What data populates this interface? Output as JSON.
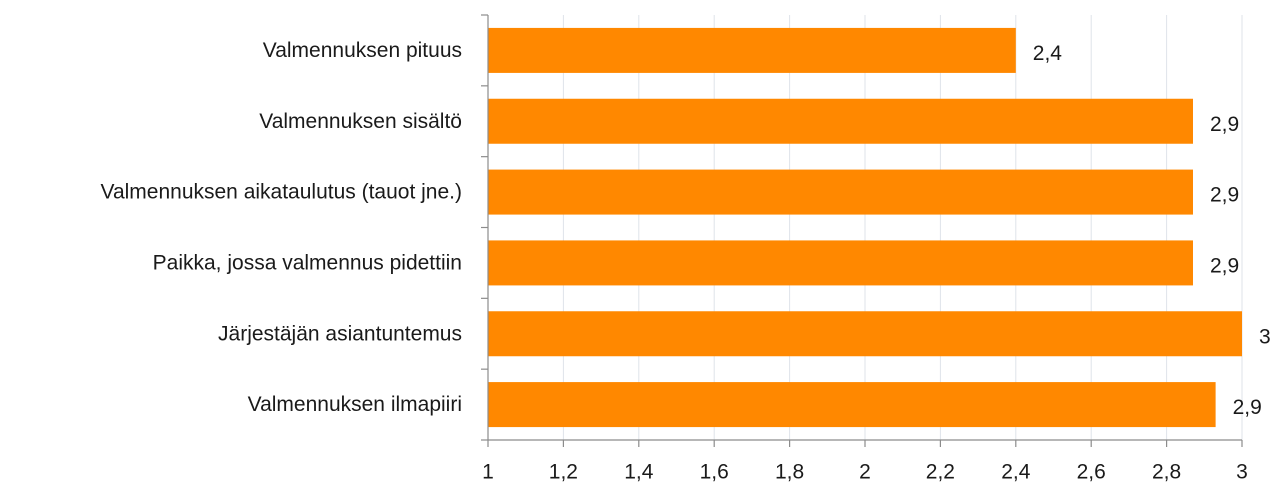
{
  "chart_data": {
    "type": "bar",
    "orientation": "horizontal",
    "categories": [
      "Valmennuksen pituus",
      "Valmennuksen sisältö",
      "Valmennuksen aikataulutus (tauot jne.)",
      "Paikka, jossa valmennus pidettiin",
      "Järjestäjän asiantuntemus",
      "Valmennuksen ilmapiiri"
    ],
    "values": [
      2.4,
      2.87,
      2.87,
      2.87,
      3.0,
      2.93
    ],
    "data_labels": [
      "2,4",
      "2,9",
      "2,9",
      "2,9",
      "3",
      "2,9"
    ],
    "xlim": [
      1,
      3
    ],
    "ticks": [
      1,
      1.2,
      1.4,
      1.6,
      1.8,
      2,
      2.2,
      2.4,
      2.6,
      2.8,
      3
    ],
    "tick_labels": [
      "1",
      "1,2",
      "1,4",
      "1,6",
      "1,8",
      "2",
      "2,2",
      "2,4",
      "2,6",
      "2,8",
      "3"
    ],
    "bar_color": "#ff8800",
    "grid_color": "#dfe3ea",
    "axis_color": "#8c8c8c",
    "grid": true,
    "legend": false
  }
}
